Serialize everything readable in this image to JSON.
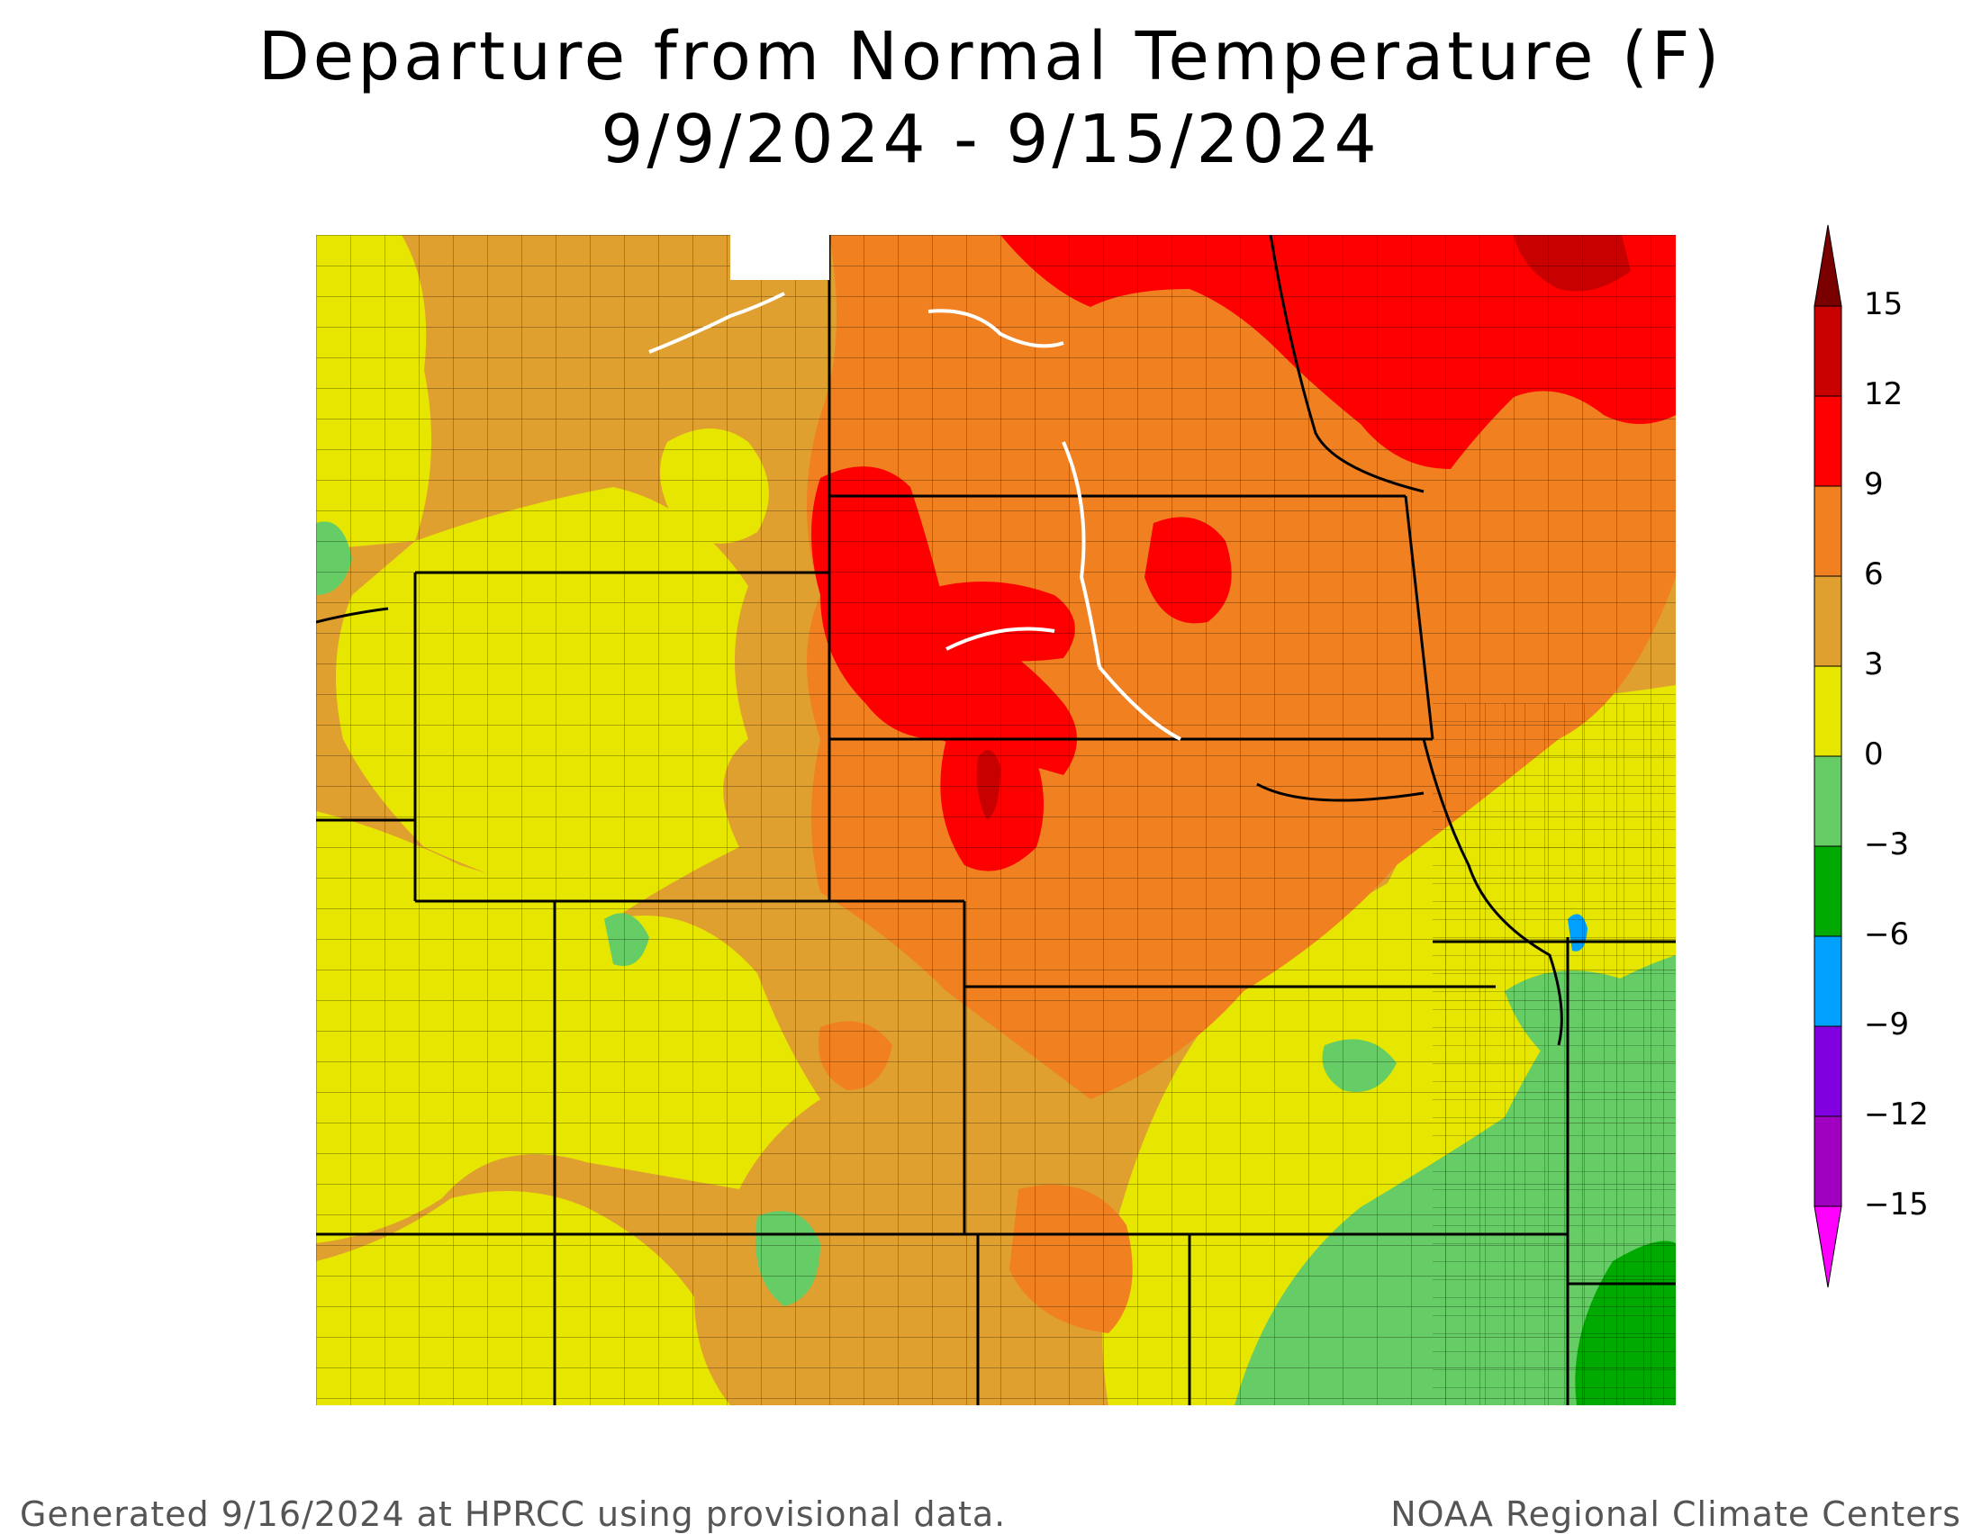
{
  "title": {
    "line1": "Departure from Normal Temperature (F)",
    "line2": "9/9/2024 - 9/15/2024"
  },
  "legend": {
    "ticks": [
      "15",
      "12",
      "9",
      "6",
      "3",
      "0",
      "−3",
      "−6",
      "−9",
      "−12",
      "−15"
    ],
    "colors": [
      "#7a0000",
      "#c80000",
      "#ff0000",
      "#f08020",
      "#e0a030",
      "#e6e600",
      "#66cc66",
      "#00aa00",
      "#00a0ff",
      "#8000e0",
      "#a000c0",
      "#ff00ff"
    ],
    "color_bins": [
      {
        "range": "> 15",
        "color": "#7a0000"
      },
      {
        "range": "12 to 15",
        "color": "#c80000"
      },
      {
        "range": "9 to 12",
        "color": "#ff0000"
      },
      {
        "range": "6 to 9",
        "color": "#f08020"
      },
      {
        "range": "3 to 6",
        "color": "#e0a030"
      },
      {
        "range": "0 to 3",
        "color": "#e6e600"
      },
      {
        "range": "-3 to 0",
        "color": "#66cc66"
      },
      {
        "range": "-6 to -3",
        "color": "#00aa00"
      },
      {
        "range": "-9 to -6",
        "color": "#00a0ff"
      },
      {
        "range": "-12 to -9",
        "color": "#8000e0"
      },
      {
        "range": "-15 to -12",
        "color": "#a000c0"
      },
      {
        "range": "< -15",
        "color": "#ff00ff"
      }
    ]
  },
  "footer": {
    "left": "Generated 9/16/2024 at HPRCC using provisional data.",
    "right": "NOAA Regional Climate Centers"
  }
}
